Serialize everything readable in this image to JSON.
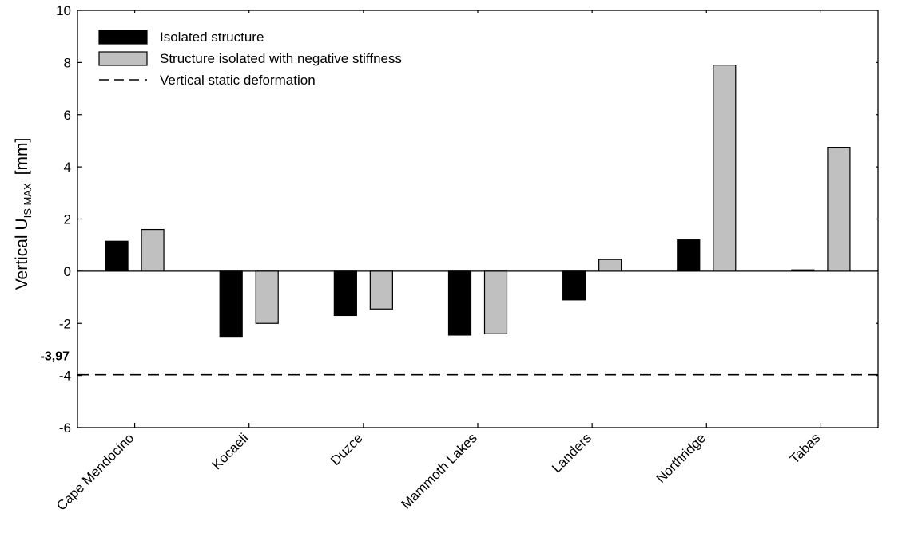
{
  "chart_data": {
    "type": "bar",
    "categories": [
      "Cape Mendocino",
      "Kocaeli",
      "Duzce",
      "Mammoth Lakes",
      "Landers",
      "Northridge",
      "Tabas"
    ],
    "series": [
      {
        "name": "Isolated structure",
        "color": "#000000",
        "values": [
          1.15,
          -2.5,
          -1.7,
          -2.45,
          -1.1,
          1.2,
          0.05
        ]
      },
      {
        "name": "Structure isolated with negative stiffness",
        "color": "#c0c0c0",
        "values": [
          1.6,
          -2.0,
          -1.45,
          -2.4,
          0.45,
          7.9,
          4.75
        ]
      }
    ],
    "reference_line": {
      "name": "Vertical static deformation",
      "value": -3.97,
      "label": "-3,97",
      "style": "dashed"
    },
    "ylabel": {
      "main": "Vertical U",
      "subscript": "IS MAX",
      "unit": "[mm]"
    },
    "ylim": [
      -6,
      10
    ],
    "yticks": [
      "-6",
      "-4",
      "-2",
      "0",
      "2",
      "4",
      "6",
      "8",
      "10"
    ],
    "grid": false,
    "legend_position": "top-left"
  }
}
